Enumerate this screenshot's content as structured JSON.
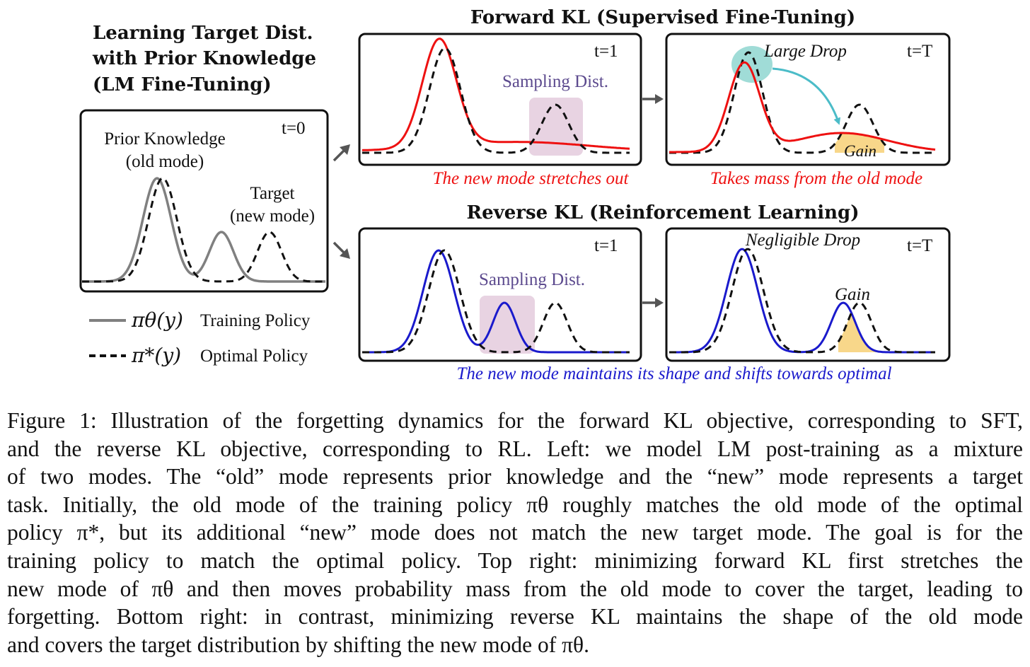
{
  "figure": {
    "left_panel": {
      "title_lines": [
        "Learning Target Dist.",
        "with Prior Knowledge",
        "(LM Fine-Tuning)"
      ],
      "time_label": "t=0",
      "prior_label_lines": [
        "Prior Knowledge",
        "(old mode)"
      ],
      "target_label_lines": [
        "Target",
        "(new mode)"
      ],
      "legend": [
        {
          "symbol": "πθ(y)",
          "text": "Training Policy",
          "style": "solid-gray"
        },
        {
          "symbol": "π*(y)",
          "text": "Optimal Policy",
          "style": "dashed-black"
        }
      ]
    },
    "forward": {
      "title": "Forward KL (Supervised Fine-Tuning)",
      "panel1": {
        "time_label": "t=1",
        "sampling_label": "Sampling Dist.",
        "note": "The new mode stretches out"
      },
      "panel2": {
        "time_label": "t=T",
        "drop_label": "Large Drop",
        "gain_label": "Gain",
        "note": "Takes mass from the old mode"
      }
    },
    "reverse": {
      "title": "Reverse KL (Reinforcement Learning)",
      "panel1": {
        "time_label": "t=1",
        "sampling_label": "Sampling Dist."
      },
      "panel2": {
        "time_label": "t=T",
        "drop_label": "Negligible Drop",
        "gain_label": "Gain"
      },
      "note": "The new mode maintains its shape and shifts towards optimal"
    },
    "colors": {
      "training_policy_gray": "#808080",
      "forward_red": "#ee1111",
      "reverse_blue": "#1a1acc",
      "sampling_box": "#e8d3e2",
      "drop_circle": "#8fd6d0",
      "gain_fill": "#f8d78a",
      "arrow_teal": "#4bbcc8",
      "sampling_text": "#5c4a8e"
    }
  },
  "caption": {
    "lines": [
      "Figure 1: Illustration of the forgetting dynamics for the forward KL objective, corresponding to SFT,",
      "and the reverse KL objective, corresponding to RL. Left: we model LM post-training as a mixture",
      "of two modes. The “old” mode represents prior knowledge and the “new” mode represents a target",
      "task. Initially, the old mode of the training policy πθ roughly matches the old mode of the optimal",
      "policy π*, but its additional “new” mode does not match the new target mode. The goal is for the",
      "training policy to match the optimal policy. Top right: minimizing forward KL first stretches the",
      "new mode of πθ and then moves probability mass from the old mode to cover the target, leading to",
      "forgetting. Bottom right: in contrast, minimizing reverse KL maintains the shape of the old mode",
      "and covers the target distribution by shifting the new mode of πθ."
    ]
  }
}
